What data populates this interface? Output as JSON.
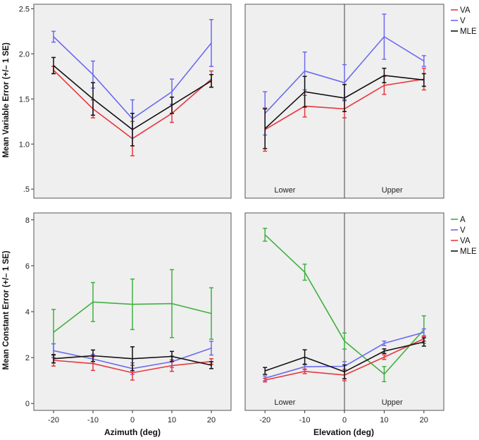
{
  "y_labels": {
    "top": "Mean Variable Error (+/– 1 SE)",
    "bottom": "Mean Constant Error (+/– 1 SE)"
  },
  "x_labels": {
    "left": "Azimuth (deg)",
    "right": "Elevation (deg)"
  },
  "colors": {
    "VA": "#e8373f",
    "V": "#6b6bf0",
    "MLE": "#111111",
    "A": "#3fb040"
  },
  "chart_data": [
    {
      "id": "tl",
      "type": "line",
      "title": "",
      "xlabel": "",
      "ylabel": "Mean Variable Error (+/– 1 SE)",
      "xlim": [
        -25,
        25
      ],
      "ylim": [
        0.4,
        2.55
      ],
      "xticks": [],
      "yticks": [
        0.5,
        1.0,
        1.5,
        2.0,
        2.5
      ],
      "ytick_labels": [
        ".5",
        "1.0",
        "1.5",
        "2.0",
        "2.5"
      ],
      "legend": [],
      "divider": null,
      "region_labels": [],
      "series": [
        {
          "name": "VA",
          "x": [
            -20,
            -10,
            0,
            10,
            20
          ],
          "y": [
            1.82,
            1.39,
            1.06,
            1.34,
            1.72
          ],
          "err": [
            0.04,
            0.1,
            0.19,
            0.1,
            0.09
          ]
        },
        {
          "name": "V",
          "x": [
            -20,
            -10,
            0,
            10,
            20
          ],
          "y": [
            2.19,
            1.77,
            1.28,
            1.58,
            2.12
          ],
          "err": [
            0.06,
            0.15,
            0.21,
            0.14,
            0.26
          ]
        },
        {
          "name": "MLE",
          "x": [
            -20,
            -10,
            0,
            10,
            20
          ],
          "y": [
            1.87,
            1.5,
            1.16,
            1.43,
            1.7
          ],
          "err": [
            0.09,
            0.18,
            0.18,
            0.09,
            0.07
          ]
        }
      ]
    },
    {
      "id": "tr",
      "type": "line",
      "title": "",
      "xlabel": "",
      "ylabel": "",
      "xlim": [
        -25,
        25
      ],
      "ylim": [
        0.4,
        2.55
      ],
      "xticks": [],
      "yticks": [],
      "ytick_labels": [],
      "legend": [
        "VA",
        "V",
        "MLE"
      ],
      "divider": 0,
      "region_labels": [
        {
          "text": "Lower",
          "x": -15
        },
        {
          "text": "Upper",
          "x": 12
        }
      ],
      "series": [
        {
          "name": "VA",
          "x": [
            -20,
            -10,
            0,
            10,
            20
          ],
          "y": [
            1.16,
            1.42,
            1.39,
            1.65,
            1.72
          ],
          "err": [
            0.24,
            0.12,
            0.1,
            0.1,
            0.12
          ]
        },
        {
          "name": "V",
          "x": [
            -20,
            -10,
            0,
            10,
            20
          ],
          "y": [
            1.34,
            1.81,
            1.68,
            2.19,
            1.92
          ],
          "err": [
            0.24,
            0.21,
            0.2,
            0.25,
            0.06
          ]
        },
        {
          "name": "MLE",
          "x": [
            -20,
            -10,
            0,
            10,
            20
          ],
          "y": [
            1.17,
            1.58,
            1.51,
            1.76,
            1.71
          ],
          "err": [
            0.22,
            0.17,
            0.15,
            0.08,
            0.07
          ]
        }
      ]
    },
    {
      "id": "bl",
      "type": "line",
      "title": "",
      "xlabel": "Azimuth (deg)",
      "ylabel": "Mean Constant Error (+/– 1 SE)",
      "xlim": [
        -25,
        25
      ],
      "ylim": [
        -0.3,
        8.3
      ],
      "xticks": [
        -20,
        -10,
        0,
        10,
        20
      ],
      "xtick_labels": [
        "-20",
        "-10",
        "0",
        "10",
        "20"
      ],
      "yticks": [
        0,
        2,
        4,
        6,
        8
      ],
      "ytick_labels": [
        "0",
        "2",
        "4",
        "6",
        "8"
      ],
      "legend": [],
      "divider": null,
      "region_labels": [],
      "series": [
        {
          "name": "A",
          "x": [
            -20,
            -10,
            0,
            10,
            20
          ],
          "y": [
            3.1,
            4.42,
            4.32,
            4.35,
            3.92
          ],
          "err": [
            1.0,
            0.85,
            1.1,
            1.48,
            1.12
          ]
        },
        {
          "name": "V",
          "x": [
            -20,
            -10,
            0,
            10,
            20
          ],
          "y": [
            2.3,
            1.94,
            1.52,
            1.82,
            2.41
          ],
          "err": [
            0.3,
            0.2,
            0.25,
            0.25,
            0.3
          ]
        },
        {
          "name": "VA",
          "x": [
            -20,
            -10,
            0,
            10,
            20
          ],
          "y": [
            1.88,
            1.74,
            1.34,
            1.65,
            1.83
          ],
          "err": [
            0.25,
            0.3,
            0.32,
            0.25,
            0.12
          ]
        },
        {
          "name": "MLE",
          "x": [
            -20,
            -10,
            0,
            10,
            20
          ],
          "y": [
            1.95,
            2.08,
            1.95,
            2.05,
            1.67
          ],
          "err": [
            0.18,
            0.25,
            0.52,
            0.22,
            0.15
          ]
        }
      ]
    },
    {
      "id": "br",
      "type": "line",
      "title": "",
      "xlabel": "Elevation (deg)",
      "ylabel": "",
      "xlim": [
        -25,
        25
      ],
      "ylim": [
        -0.3,
        8.3
      ],
      "xticks": [
        -20,
        -10,
        0,
        10,
        20
      ],
      "xtick_labels": [
        "-20",
        "-10",
        "0",
        "10",
        "20"
      ],
      "yticks": [],
      "ytick_labels": [],
      "legend": [
        "A",
        "V",
        "VA",
        "MLE"
      ],
      "divider": 0,
      "region_labels": [
        {
          "text": "Lower",
          "x": -15
        },
        {
          "text": "Upper",
          "x": 12
        }
      ],
      "series": [
        {
          "name": "A",
          "x": [
            -20,
            -10,
            0,
            10,
            20
          ],
          "y": [
            7.35,
            5.72,
            2.72,
            1.28,
            3.22
          ],
          "err": [
            0.28,
            0.35,
            0.35,
            0.33,
            0.6
          ]
        },
        {
          "name": "V",
          "x": [
            -20,
            -10,
            0,
            10,
            20
          ],
          "y": [
            1.1,
            1.6,
            1.62,
            2.62,
            3.1
          ],
          "err": [
            0.1,
            0.12,
            0.2,
            0.1,
            0.15
          ]
        },
        {
          "name": "VA",
          "x": [
            -20,
            -10,
            0,
            10,
            20
          ],
          "y": [
            1.02,
            1.4,
            1.24,
            2.02,
            2.82
          ],
          "err": [
            0.08,
            0.1,
            0.25,
            0.1,
            0.1
          ]
        },
        {
          "name": "MLE",
          "x": [
            -20,
            -10,
            0,
            10,
            20
          ],
          "y": [
            1.42,
            2.02,
            1.38,
            2.28,
            2.68
          ],
          "err": [
            0.15,
            0.32,
            0.3,
            0.1,
            0.18
          ]
        }
      ]
    }
  ]
}
